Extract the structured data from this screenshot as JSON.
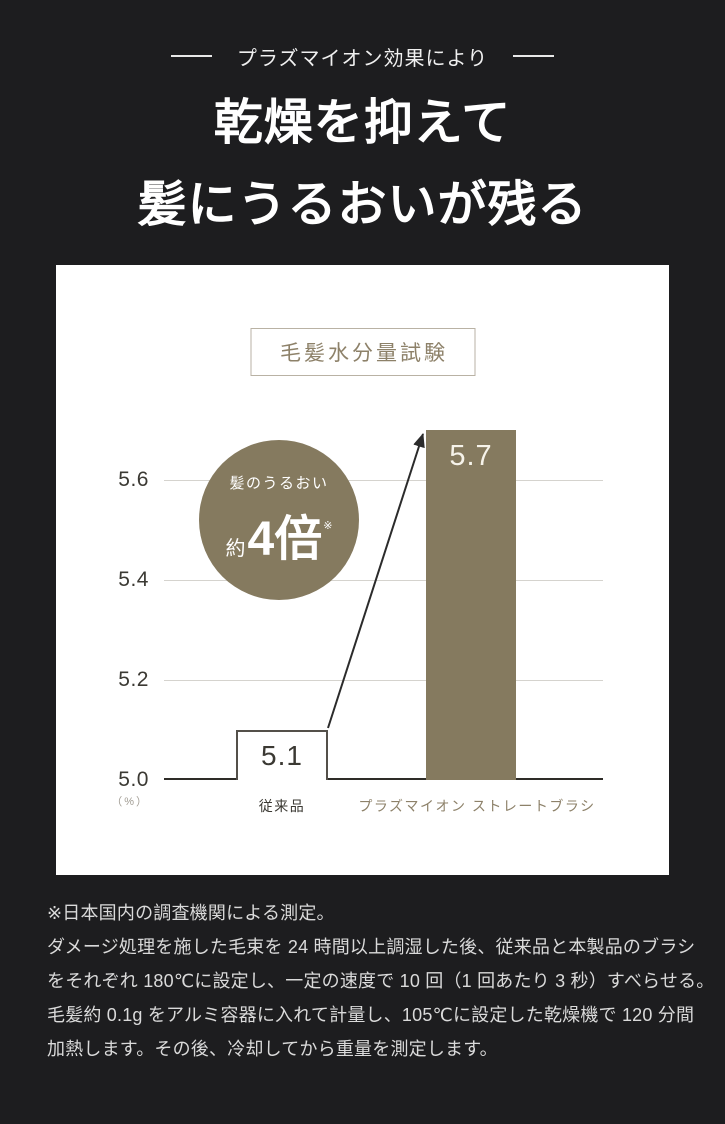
{
  "header": {
    "eyebrow": "プラズマイオン効果により",
    "title_line1": "乾燥を抑えて",
    "title_line2": "髪にうるおいが残る"
  },
  "chart": {
    "badge": {
      "top_label": "髪のうるおい",
      "approx_prefix": "約",
      "value": "4倍",
      "note_mark": "※"
    }
  },
  "chart_data": {
    "type": "bar",
    "title": "毛髪水分量試験",
    "categories": [
      "従来品",
      "プラズマイオン ストレートブラシ"
    ],
    "values": [
      5.1,
      5.7
    ],
    "value_labels": [
      "5.1",
      "5.7"
    ],
    "ylabel": "（%）",
    "ylim": [
      5.0,
      5.8
    ],
    "yticks": [
      5.0,
      5.2,
      5.4,
      5.6
    ],
    "ytick_labels": [
      "5.0",
      "5.2",
      "5.4",
      "5.6"
    ],
    "grid": true,
    "annotation": "髪のうるおい 約4倍※",
    "bar_colors": [
      "#FFFFFF",
      "#857A5F"
    ]
  },
  "colors": {
    "background": "#1D1D1F",
    "card": "#FFFFFF",
    "accent": "#857A5F",
    "accent_text": "#8D8169",
    "grid": "#D5D3CE",
    "axis": "#2E2C28",
    "dark_text": "#3B3933",
    "light_value": "#F6F3EA"
  },
  "footnote": {
    "lines": [
      "※日本国内の調査機関による測定。",
      "ダメージ処理を施した毛束を 24 時間以上調湿した後、従来品と本製品のブラシ",
      "をそれぞれ 180℃に設定し、一定の速度で 10 回（1 回あたり 3 秒）すべらせる。",
      "毛髪約 0.1g をアルミ容器に入れて計量し、105℃に設定した乾燥機で 120 分間",
      "加熱します。その後、冷却してから重量を測定します。"
    ]
  }
}
